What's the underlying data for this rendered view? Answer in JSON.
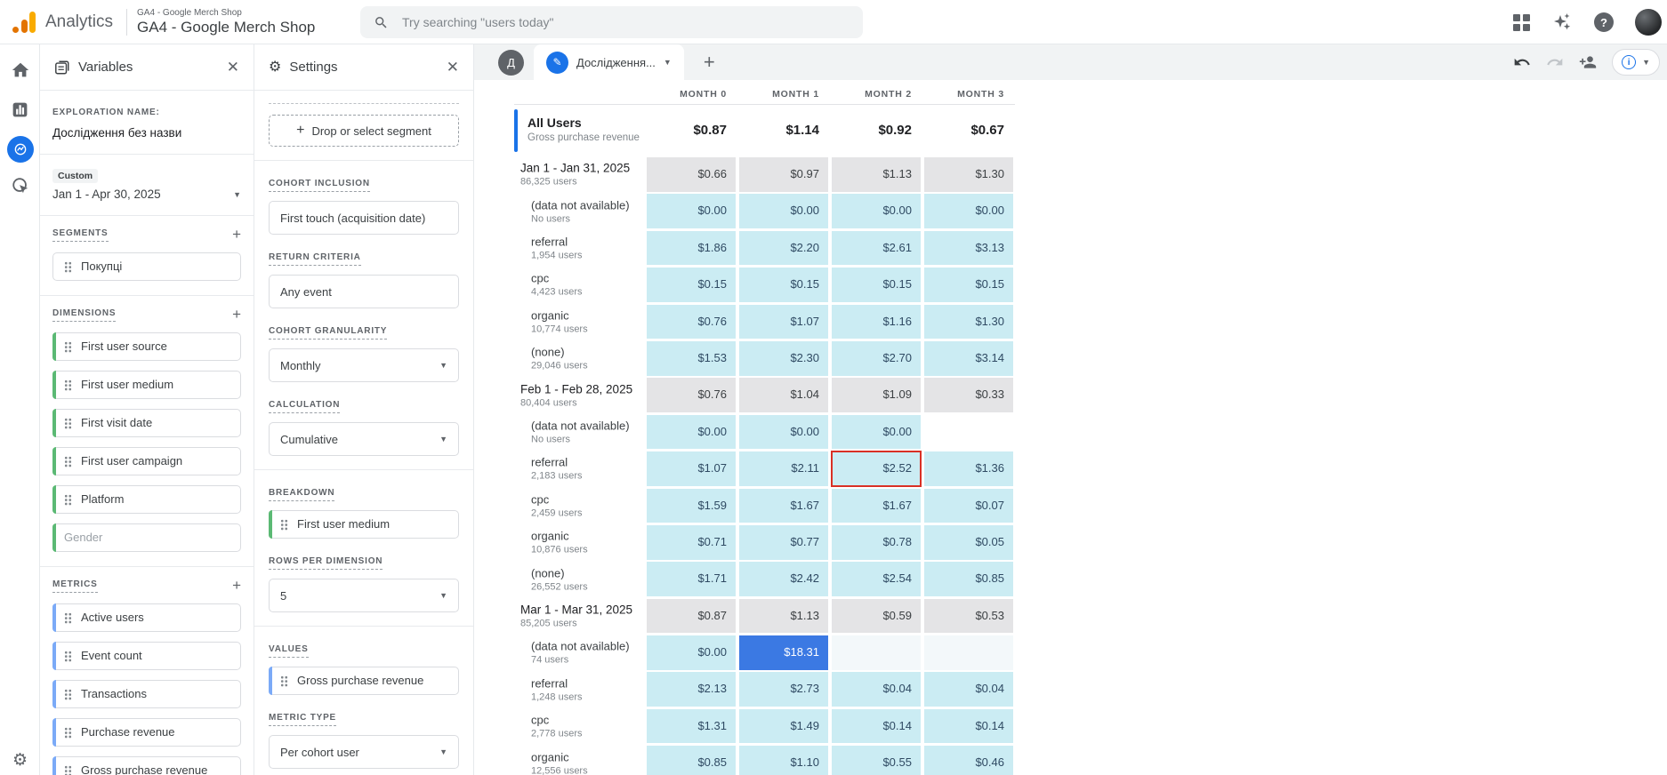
{
  "topbar": {
    "brand": "Analytics",
    "account": "GA4 - Google Merch Shop",
    "property": "GA4 - Google Merch Shop",
    "search_placeholder": "Try searching \"users today\"",
    "icons": [
      "search-icon",
      "apps-grid-icon",
      "gemini-sparkle-icon",
      "help-icon",
      "avatar"
    ]
  },
  "nav_rail": {
    "items": [
      {
        "name": "home",
        "selected": false
      },
      {
        "name": "reports",
        "selected": false
      },
      {
        "name": "explore",
        "selected": true
      },
      {
        "name": "advertising",
        "selected": false
      },
      {
        "name": "admin-gear",
        "selected": false
      }
    ]
  },
  "variables_panel": {
    "title": "Variables",
    "exploration_name_label": "EXPLORATION NAME:",
    "exploration_name": "Дослідження без назви",
    "date_badge": "Custom",
    "date_range": "Jan 1 - Apr 30, 2025",
    "segments": {
      "label": "SEGMENTS",
      "items": [
        {
          "label": "Покупці"
        }
      ]
    },
    "dimensions": {
      "label": "DIMENSIONS",
      "items": [
        {
          "label": "First user source"
        },
        {
          "label": "First user medium"
        },
        {
          "label": "First visit date"
        },
        {
          "label": "First user campaign"
        },
        {
          "label": "Platform"
        },
        {
          "label": "Gender",
          "ghost": true
        }
      ]
    },
    "metrics": {
      "label": "METRICS",
      "items": [
        {
          "label": "Active users"
        },
        {
          "label": "Event count"
        },
        {
          "label": "Transactions"
        },
        {
          "label": "Purchase revenue"
        },
        {
          "label": "Gross purchase revenue"
        }
      ]
    }
  },
  "settings_panel": {
    "title": "Settings",
    "drop_segment_label": "Drop or select segment",
    "fields": [
      {
        "label": "COHORT INCLUSION",
        "value": "First touch (acquisition date)",
        "type": "box",
        "divider_before": true
      },
      {
        "label": "RETURN CRITERIA",
        "value": "Any event",
        "type": "box"
      },
      {
        "label": "COHORT GRANULARITY",
        "value": "Monthly",
        "type": "select"
      },
      {
        "label": "CALCULATION",
        "value": "Cumulative",
        "type": "select"
      },
      {
        "label": "BREAKDOWN",
        "value": "First user medium",
        "type": "chip-green",
        "divider_before": true
      },
      {
        "label": "ROWS PER DIMENSION",
        "value": "5",
        "type": "select"
      },
      {
        "label": "VALUES",
        "value": "Gross purchase revenue",
        "type": "chip-blue",
        "divider_before": true
      },
      {
        "label": "METRIC TYPE",
        "value": "Per cohort user",
        "type": "select"
      }
    ]
  },
  "canvas": {
    "tab": {
      "avatar_letter": "Д",
      "label": "Дослідження...",
      "add_label": "+"
    },
    "toolbar_icons": [
      "undo-icon",
      "redo-icon",
      "share-user-icon",
      "info-icon",
      "chevron-down-icon"
    ],
    "table": {
      "columns": [
        "MONTH 0",
        "MONTH 1",
        "MONTH 2",
        "MONTH 3"
      ],
      "summary": {
        "label": "All Users",
        "sublabel": "Gross purchase revenue",
        "values": [
          "$0.87",
          "$1.14",
          "$0.92",
          "$0.67"
        ]
      },
      "rows": [
        {
          "label": "Jan 1 - Jan 31, 2025",
          "sublabel": "86,325 users",
          "kind": "cohort",
          "cells": [
            {
              "v": "$0.66",
              "bg": "gray"
            },
            {
              "v": "$0.97",
              "bg": "gray"
            },
            {
              "v": "$1.13",
              "bg": "gray"
            },
            {
              "v": "$1.30",
              "bg": "gray"
            }
          ]
        },
        {
          "label": "(data not available)",
          "sublabel": "No users",
          "kind": "breakdown",
          "cells": [
            {
              "v": "$0.00",
              "bg": "cyan"
            },
            {
              "v": "$0.00",
              "bg": "cyan"
            },
            {
              "v": "$0.00",
              "bg": "cyan"
            },
            {
              "v": "$0.00",
              "bg": "cyan"
            }
          ]
        },
        {
          "label": "referral",
          "sublabel": "1,954 users",
          "kind": "breakdown",
          "cells": [
            {
              "v": "$1.86",
              "bg": "cyan"
            },
            {
              "v": "$2.20",
              "bg": "cyan"
            },
            {
              "v": "$2.61",
              "bg": "cyan"
            },
            {
              "v": "$3.13",
              "bg": "cyan"
            }
          ]
        },
        {
          "label": "cpc",
          "sublabel": "4,423 users",
          "kind": "breakdown",
          "cells": [
            {
              "v": "$0.15",
              "bg": "cyan"
            },
            {
              "v": "$0.15",
              "bg": "cyan"
            },
            {
              "v": "$0.15",
              "bg": "cyan"
            },
            {
              "v": "$0.15",
              "bg": "cyan"
            }
          ]
        },
        {
          "label": "organic",
          "sublabel": "10,774 users",
          "kind": "breakdown",
          "cells": [
            {
              "v": "$0.76",
              "bg": "cyan"
            },
            {
              "v": "$1.07",
              "bg": "cyan"
            },
            {
              "v": "$1.16",
              "bg": "cyan"
            },
            {
              "v": "$1.30",
              "bg": "cyan"
            }
          ]
        },
        {
          "label": "(none)",
          "sublabel": "29,046 users",
          "kind": "breakdown",
          "cells": [
            {
              "v": "$1.53",
              "bg": "cyan"
            },
            {
              "v": "$2.30",
              "bg": "cyan"
            },
            {
              "v": "$2.70",
              "bg": "cyan"
            },
            {
              "v": "$3.14",
              "bg": "cyan"
            }
          ]
        },
        {
          "label": "Feb 1 - Feb 28, 2025",
          "sublabel": "80,404 users",
          "kind": "cohort",
          "cells": [
            {
              "v": "$0.76",
              "bg": "gray"
            },
            {
              "v": "$1.04",
              "bg": "gray"
            },
            {
              "v": "$1.09",
              "bg": "gray"
            },
            {
              "v": "$0.33",
              "bg": "gray"
            }
          ]
        },
        {
          "label": "(data not available)",
          "sublabel": "No users",
          "kind": "breakdown",
          "cells": [
            {
              "v": "$0.00",
              "bg": "cyan"
            },
            {
              "v": "$0.00",
              "bg": "cyan"
            },
            {
              "v": "$0.00",
              "bg": "cyan"
            },
            {
              "v": "",
              "bg": "none"
            }
          ]
        },
        {
          "label": "referral",
          "sublabel": "2,183 users",
          "kind": "breakdown",
          "cells": [
            {
              "v": "$1.07",
              "bg": "cyan"
            },
            {
              "v": "$2.11",
              "bg": "cyan"
            },
            {
              "v": "$2.52",
              "bg": "cyan",
              "box": true
            },
            {
              "v": "$1.36",
              "bg": "cyan"
            }
          ]
        },
        {
          "label": "cpc",
          "sublabel": "2,459 users",
          "kind": "breakdown",
          "cells": [
            {
              "v": "$1.59",
              "bg": "cyan"
            },
            {
              "v": "$1.67",
              "bg": "cyan"
            },
            {
              "v": "$1.67",
              "bg": "cyan"
            },
            {
              "v": "$0.07",
              "bg": "cyan"
            }
          ]
        },
        {
          "label": "organic",
          "sublabel": "10,876 users",
          "kind": "breakdown",
          "cells": [
            {
              "v": "$0.71",
              "bg": "cyan"
            },
            {
              "v": "$0.77",
              "bg": "cyan"
            },
            {
              "v": "$0.78",
              "bg": "cyan"
            },
            {
              "v": "$0.05",
              "bg": "cyan"
            }
          ]
        },
        {
          "label": "(none)",
          "sublabel": "26,552 users",
          "kind": "breakdown",
          "cells": [
            {
              "v": "$1.71",
              "bg": "cyan"
            },
            {
              "v": "$2.42",
              "bg": "cyan"
            },
            {
              "v": "$2.54",
              "bg": "cyan"
            },
            {
              "v": "$0.85",
              "bg": "cyan"
            }
          ]
        },
        {
          "label": "Mar 1 - Mar 31, 2025",
          "sublabel": "85,205 users",
          "kind": "cohort",
          "cells": [
            {
              "v": "$0.87",
              "bg": "gray"
            },
            {
              "v": "$1.13",
              "bg": "gray"
            },
            {
              "v": "$0.59",
              "bg": "gray"
            },
            {
              "v": "$0.53",
              "bg": "gray"
            }
          ]
        },
        {
          "label": "(data not available)",
          "sublabel": "74 users",
          "kind": "breakdown",
          "cells": [
            {
              "v": "$0.00",
              "bg": "cyan"
            },
            {
              "v": "$18.31",
              "bg": "blue"
            },
            {
              "v": "",
              "bg": "faint"
            },
            {
              "v": "",
              "bg": "faint"
            }
          ]
        },
        {
          "label": "referral",
          "sublabel": "1,248 users",
          "kind": "breakdown",
          "cells": [
            {
              "v": "$2.13",
              "bg": "cyan"
            },
            {
              "v": "$2.73",
              "bg": "cyan"
            },
            {
              "v": "$0.04",
              "bg": "cyan"
            },
            {
              "v": "$0.04",
              "bg": "cyan"
            }
          ]
        },
        {
          "label": "cpc",
          "sublabel": "2,778 users",
          "kind": "breakdown",
          "cells": [
            {
              "v": "$1.31",
              "bg": "cyan"
            },
            {
              "v": "$1.49",
              "bg": "cyan"
            },
            {
              "v": "$0.14",
              "bg": "cyan"
            },
            {
              "v": "$0.14",
              "bg": "cyan"
            }
          ]
        },
        {
          "label": "organic",
          "sublabel": "12,556 users",
          "kind": "breakdown",
          "cells": [
            {
              "v": "$0.85",
              "bg": "cyan"
            },
            {
              "v": "$1.10",
              "bg": "cyan"
            },
            {
              "v": "$0.55",
              "bg": "cyan"
            },
            {
              "v": "$0.46",
              "bg": "cyan"
            }
          ]
        }
      ]
    }
  },
  "colors": {
    "accent_blue": "#1a73e8",
    "cell_cyan": "#cbecf3",
    "cell_gray": "#e4e4e6",
    "cell_selected_blue": "#3b79e3",
    "highlight_red": "#d93025",
    "dimension_green": "#5bb974",
    "metric_blue": "#7baaf7"
  }
}
